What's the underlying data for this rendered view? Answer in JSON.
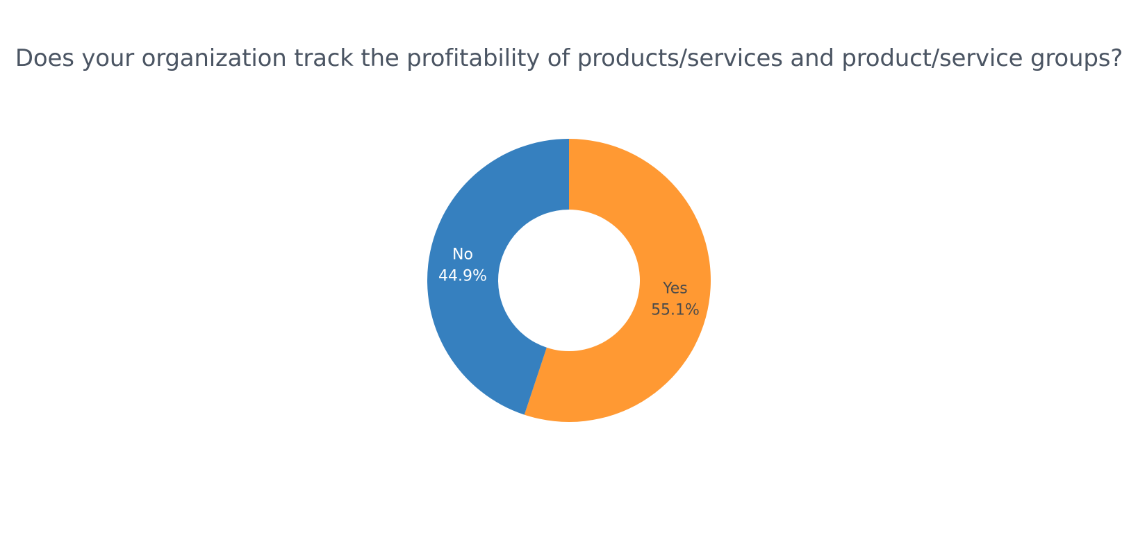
{
  "chart_data": {
    "type": "pie",
    "hole": true,
    "title": "Does your organization track the profitability of products/services and product/service groups?",
    "categories": [
      "Yes",
      "No"
    ],
    "values": [
      55.1,
      44.9
    ],
    "value_labels": [
      "55.1%",
      "44.9%"
    ],
    "colors": [
      "#ff9933",
      "#3680bf"
    ],
    "label_colors": [
      "#4b4b4b",
      "#ffffff"
    ],
    "start": "top",
    "direction": "clockwise",
    "legend": "none"
  }
}
